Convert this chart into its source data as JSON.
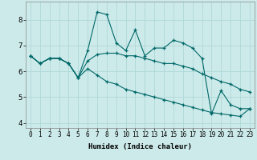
{
  "xlabel": "Humidex (Indice chaleur)",
  "ylabel": "",
  "background_color": "#cdeaea",
  "grid_color": "#b0d8d8",
  "line_color": "#006868",
  "xlim": [
    -0.5,
    23.5
  ],
  "ylim": [
    3.8,
    8.7
  ],
  "yticks": [
    4,
    5,
    6,
    7,
    8
  ],
  "xticks": [
    0,
    1,
    2,
    3,
    4,
    5,
    6,
    7,
    8,
    9,
    10,
    11,
    12,
    13,
    14,
    15,
    16,
    17,
    18,
    19,
    20,
    21,
    22,
    23
  ],
  "series": [
    [
      6.6,
      6.3,
      6.5,
      6.5,
      6.3,
      5.75,
      6.8,
      8.3,
      8.2,
      7.1,
      6.8,
      7.6,
      6.6,
      6.9,
      6.9,
      7.2,
      7.1,
      6.9,
      6.5,
      4.35,
      5.25,
      4.7,
      4.55,
      4.55
    ],
    [
      6.6,
      6.3,
      6.5,
      6.5,
      6.3,
      5.75,
      6.4,
      6.65,
      6.7,
      6.7,
      6.6,
      6.6,
      6.5,
      6.4,
      6.3,
      6.3,
      6.2,
      6.1,
      5.9,
      5.75,
      5.6,
      5.5,
      5.3,
      5.2
    ],
    [
      6.6,
      6.3,
      6.5,
      6.5,
      6.3,
      5.75,
      6.1,
      5.85,
      5.6,
      5.5,
      5.3,
      5.2,
      5.1,
      5.0,
      4.9,
      4.8,
      4.7,
      4.6,
      4.5,
      4.4,
      4.35,
      4.3,
      4.25,
      4.55
    ]
  ]
}
